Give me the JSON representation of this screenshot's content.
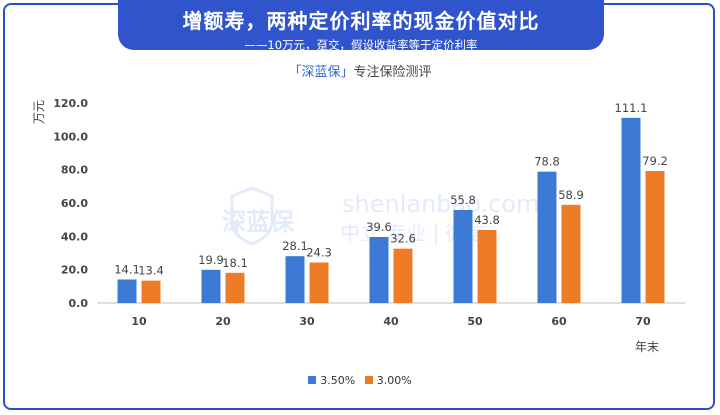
{
  "banner": {
    "title": "增额寿，两种定价利率的现金价值对比",
    "subtitle": "——10万元，趸交，假设收益率等于定价利率"
  },
  "brand": {
    "name": "「深蓝保」",
    "tagline": "专注保险测评"
  },
  "watermark": {
    "site": "shenlanbao.com",
    "logo_text": "深蓝保",
    "slogan": "中立 专业 | 微信"
  },
  "colors": {
    "series1": "#3c7ad6",
    "series2": "#ee7c27",
    "border": "#2b4fc6",
    "banner": "#2f54cc"
  },
  "chart_data": {
    "type": "bar",
    "categories": [
      "10",
      "20",
      "30",
      "40",
      "50",
      "60",
      "70"
    ],
    "series": [
      {
        "name": "3.50%",
        "values": [
          14.1,
          19.9,
          28.1,
          39.6,
          55.8,
          78.8,
          111.1
        ]
      },
      {
        "name": "3.00%",
        "values": [
          13.4,
          18.1,
          24.3,
          32.6,
          43.8,
          58.9,
          79.2
        ]
      }
    ],
    "xlabel": "年末",
    "ylabel": "万元",
    "ylim": [
      0,
      120
    ],
    "yticks": [
      "0.0",
      "20.0",
      "40.0",
      "60.0",
      "80.0",
      "100.0",
      "120.0"
    ],
    "grid": false,
    "legend": "bottom-center"
  }
}
